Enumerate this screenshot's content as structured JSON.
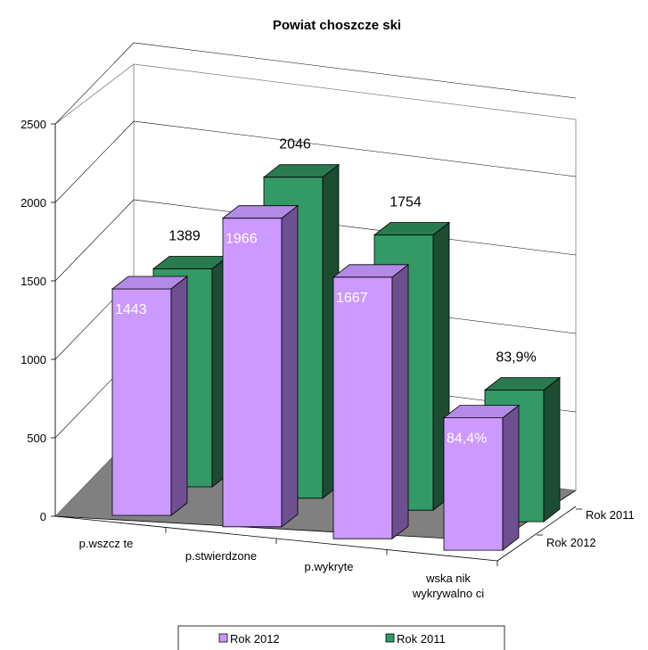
{
  "chart_data": {
    "type": "bar",
    "title": "Powiat choszcze  ski",
    "categories": [
      "p.wszcz  te",
      "p.stwierdzone",
      "p.wykryte",
      "wska nik wykrywalno ci"
    ],
    "category_lines": [
      [
        "p.wszcz  te"
      ],
      [
        "p.stwierdzone"
      ],
      [
        "p.wykryte"
      ],
      [
        "wska nik",
        "wykrywalno ci"
      ]
    ],
    "series": [
      {
        "name": "Rok 2012",
        "values": [
          1443,
          1966,
          1667,
          84.4
        ],
        "labels": [
          "1443",
          "1966",
          "1667",
          "84,4%"
        ],
        "color": "#cc99ff",
        "side_color": "#6e4f8f",
        "top_color": "#b38ae6"
      },
      {
        "name": "Rok 2011",
        "values": [
          1389,
          2046,
          1754,
          83.9
        ],
        "labels": [
          "1389",
          "2046",
          "1754",
          "83,9%"
        ],
        "color": "#339966",
        "side_color": "#1c4d33",
        "top_color": "#2a7a50"
      }
    ],
    "yticks": [
      0,
      500,
      1000,
      1500,
      2000,
      2500
    ],
    "ylim": [
      0,
      2500
    ],
    "depth_labels": [
      "Rok 2011",
      "Rok 2012"
    ],
    "legend_position": "bottom",
    "floor_color": "#808080",
    "grid": true
  }
}
